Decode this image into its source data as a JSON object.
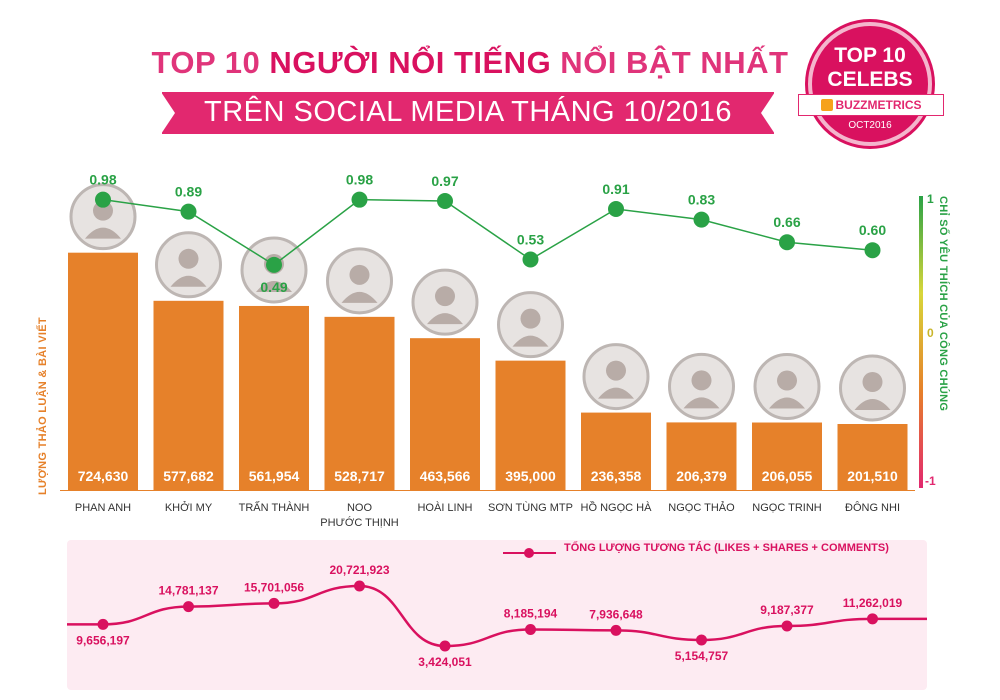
{
  "header": {
    "title_prefix": "TOP 10 ",
    "title_bold": "NGƯỜI NỔI TIẾNG",
    "title_suffix": " NỔI BẬT NHẤT",
    "subtitle": "TRÊN SOCIAL MEDIA THÁNG 10/2016"
  },
  "badge": {
    "line1": "TOP 10",
    "line2": "CELEBS",
    "brand": "BUZZMETRICS",
    "date": "OCT2016"
  },
  "colors": {
    "bar": "#e6812a",
    "love_index": "#2aa246",
    "interactions": "#d9115f",
    "accent": "#e2286f"
  },
  "chart_data": [
    {
      "type": "bar",
      "categories": [
        "PHAN ANH",
        "KHỞI MY",
        "TRẤN THÀNH",
        "NOO PHƯỚC THỊNH",
        "HOÀI LINH",
        "SƠN TÙNG MTP",
        "HỒ NGỌC HÀ",
        "NGỌC THẢO",
        "NGỌC TRINH",
        "ĐÔNG NHI"
      ],
      "category_lines": [
        [
          "PHAN ANH"
        ],
        [
          "KHỞI MY"
        ],
        [
          "TRẤN THÀNH"
        ],
        [
          "NOO",
          "PHƯỚC THỊNH"
        ],
        [
          "HOÀI LINH"
        ],
        [
          "SƠN TÙNG MTP"
        ],
        [
          "HỒ NGỌC HÀ"
        ],
        [
          "NGỌC THẢO"
        ],
        [
          "NGỌC TRINH"
        ],
        [
          "ĐÔNG NHI"
        ]
      ],
      "values": [
        724630,
        577682,
        561954,
        528717,
        463566,
        395000,
        236358,
        206379,
        206055,
        201510
      ],
      "value_labels": [
        "724,630",
        "577,682",
        "561,954",
        "528,717",
        "463,566",
        "395,000",
        "236,358",
        "206,379",
        "206,055",
        "201,510"
      ],
      "ylabel": "LƯỢNG THẢO LUẬN & BÀI VIẾT",
      "ylim": [
        0,
        800000
      ]
    },
    {
      "type": "line",
      "categories": [
        "PHAN ANH",
        "KHỞI MY",
        "TRẤN THÀNH",
        "NOO PHƯỚC THỊNH",
        "HOÀI LINH",
        "SƠN TÙNG MTP",
        "HỒ NGỌC HÀ",
        "NGỌC THẢO",
        "NGỌC TRINH",
        "ĐÔNG NHI"
      ],
      "values": [
        0.98,
        0.89,
        0.49,
        0.98,
        0.97,
        0.53,
        0.91,
        0.83,
        0.66,
        0.6
      ],
      "value_labels": [
        "0.98",
        "0.89",
        "0.49",
        "0.98",
        "0.97",
        "0.53",
        "0.91",
        "0.83",
        "0.66",
        "0.60"
      ],
      "label_position": [
        "above",
        "above",
        "below",
        "above",
        "above",
        "above",
        "above",
        "above",
        "above",
        "above"
      ],
      "ylabel": "CHỈ SỐ YÊU THÍCH CỦA CÔNG CHÚNG",
      "yticks": [
        "1",
        "0",
        "-1"
      ],
      "ylim": [
        -1,
        1
      ]
    },
    {
      "type": "line",
      "categories": [
        "PHAN ANH",
        "KHỞI MY",
        "TRẤN THÀNH",
        "NOO PHƯỚC THỊNH",
        "HOÀI LINH",
        "SƠN TÙNG MTP",
        "HỒ NGỌC HÀ",
        "NGỌC THẢO",
        "NGỌC TRINH",
        "ĐÔNG NHI"
      ],
      "series": [
        {
          "name": "TỔNG LƯỢNG TƯƠNG TÁC (LIKES + SHARES + COMMENTS)",
          "values": [
            9656197,
            14781137,
            15701056,
            20721923,
            3424051,
            8185194,
            7936648,
            5154757,
            9187377,
            11262019
          ]
        }
      ],
      "value_labels": [
        "9,656,197",
        "14,781,137",
        "15,701,056",
        "20,721,923",
        "3,424,051",
        "8,185,194",
        "7,936,648",
        "5,154,757",
        "9,187,377",
        "11,262,019"
      ],
      "label_position": [
        "below",
        "above",
        "above",
        "above",
        "below",
        "above",
        "above",
        "below",
        "above",
        "above"
      ]
    }
  ]
}
